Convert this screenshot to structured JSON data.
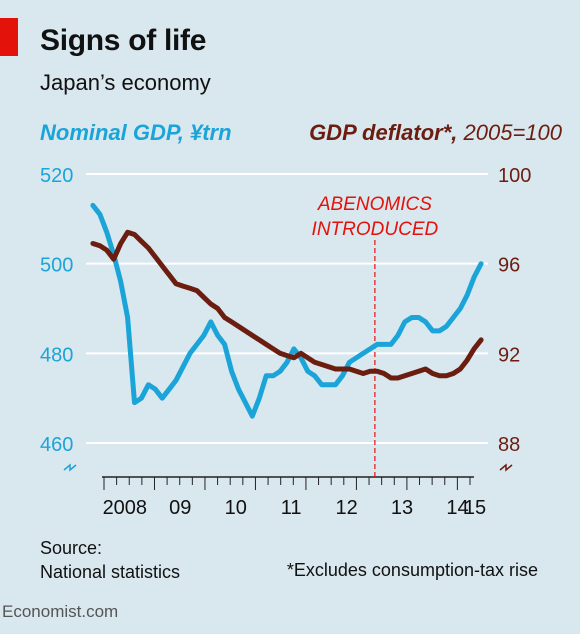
{
  "header": {
    "title": "Signs of life",
    "subtitle": "Japan’s economy"
  },
  "legend": {
    "left_label": "Nominal GDP, ¥trn",
    "right_label": "GDP deflator*,",
    "right_note": " 2005=100"
  },
  "annotation": [
    "ABENOMICS",
    "INTRODUCED"
  ],
  "footer": {
    "source_title": "Source:",
    "source_text": "National statistics",
    "note": "*Excludes consumption-tax rise"
  },
  "brand": "Economist.com",
  "colors": {
    "background": "#d9e7ef",
    "gdp": "#1ba4d8",
    "deflator": "#6b1e10",
    "annotation": "#e3120b",
    "grid": "#ffffff"
  },
  "chart_data": {
    "type": "line",
    "title": "Signs of life",
    "subtitle": "Japan’s economy",
    "x_tick_labels": [
      "2008",
      "09",
      "10",
      "11",
      "12",
      "13",
      "14",
      "15"
    ],
    "x_range": [
      2007.75,
      2015.0
    ],
    "left_axis": {
      "ticks": [
        460,
        480,
        500,
        520
      ],
      "range": [
        460,
        520
      ]
    },
    "right_axis": {
      "ticks": [
        88,
        92,
        96,
        100
      ],
      "range": [
        88,
        100
      ]
    },
    "grid": true,
    "vertical_marker": {
      "x": 2012.96,
      "label": [
        "ABENOMICS",
        "INTRODUCED"
      ]
    },
    "series": [
      {
        "name": "Nominal GDP, ¥trn",
        "axis": "left",
        "x": [
          2007.875,
          2008.0,
          2008.125,
          2008.25,
          2008.375,
          2008.5,
          2008.625,
          2008.75,
          2008.875,
          2009.0,
          2009.125,
          2009.25,
          2009.375,
          2009.5,
          2009.625,
          2009.75,
          2009.875,
          2010.0,
          2010.125,
          2010.25,
          2010.375,
          2010.5,
          2010.625,
          2010.75,
          2010.875,
          2011.0,
          2011.125,
          2011.25,
          2011.375,
          2011.5,
          2011.625,
          2011.75,
          2011.875,
          2012.0,
          2012.125,
          2012.25,
          2012.375,
          2012.5,
          2012.625,
          2012.75,
          2012.875,
          2013.0,
          2013.125,
          2013.25,
          2013.375,
          2013.5,
          2013.625,
          2013.75,
          2013.875,
          2014.0,
          2014.125,
          2014.25,
          2014.375,
          2014.5,
          2014.625,
          2014.75,
          2014.875
        ],
        "y": [
          513,
          511,
          507,
          502,
          496,
          488,
          469,
          470,
          473,
          472,
          470,
          472,
          474,
          477,
          480,
          482,
          484,
          487,
          484,
          482,
          476,
          472,
          469,
          466,
          470,
          475,
          475,
          476,
          478,
          481,
          479,
          476,
          475,
          473,
          473,
          473,
          475,
          478,
          479,
          480,
          481,
          482,
          482,
          482,
          484,
          487,
          488,
          488,
          487,
          485,
          485,
          486,
          488,
          490,
          493,
          497,
          500
        ],
        "color": "#1ba4d8"
      },
      {
        "name": "GDP deflator*, 2005=100",
        "axis": "right",
        "x": [
          2007.875,
          2008.0,
          2008.125,
          2008.25,
          2008.375,
          2008.5,
          2008.625,
          2008.75,
          2008.875,
          2009.0,
          2009.125,
          2009.25,
          2009.375,
          2009.5,
          2009.625,
          2009.75,
          2009.875,
          2010.0,
          2010.125,
          2010.25,
          2010.375,
          2010.5,
          2010.625,
          2010.75,
          2010.875,
          2011.0,
          2011.125,
          2011.25,
          2011.375,
          2011.5,
          2011.625,
          2011.75,
          2011.875,
          2012.0,
          2012.125,
          2012.25,
          2012.375,
          2012.5,
          2012.625,
          2012.75,
          2012.875,
          2013.0,
          2013.125,
          2013.25,
          2013.375,
          2013.5,
          2013.625,
          2013.75,
          2013.875,
          2014.0,
          2014.125,
          2014.25,
          2014.375,
          2014.5,
          2014.625,
          2014.75,
          2014.875
        ],
        "y": [
          96.9,
          96.8,
          96.6,
          96.2,
          96.9,
          97.4,
          97.3,
          97.0,
          96.7,
          96.3,
          95.9,
          95.5,
          95.1,
          95.0,
          94.9,
          94.8,
          94.5,
          94.2,
          94.0,
          93.6,
          93.4,
          93.2,
          93.0,
          92.8,
          92.6,
          92.4,
          92.2,
          92.0,
          91.9,
          91.8,
          92.0,
          91.8,
          91.6,
          91.5,
          91.4,
          91.3,
          91.3,
          91.3,
          91.2,
          91.1,
          91.2,
          91.2,
          91.1,
          90.9,
          90.9,
          91.0,
          91.1,
          91.2,
          91.3,
          91.1,
          91.0,
          91.0,
          91.1,
          91.3,
          91.7,
          92.2,
          92.6
        ],
        "color": "#6b1e10"
      }
    ]
  }
}
